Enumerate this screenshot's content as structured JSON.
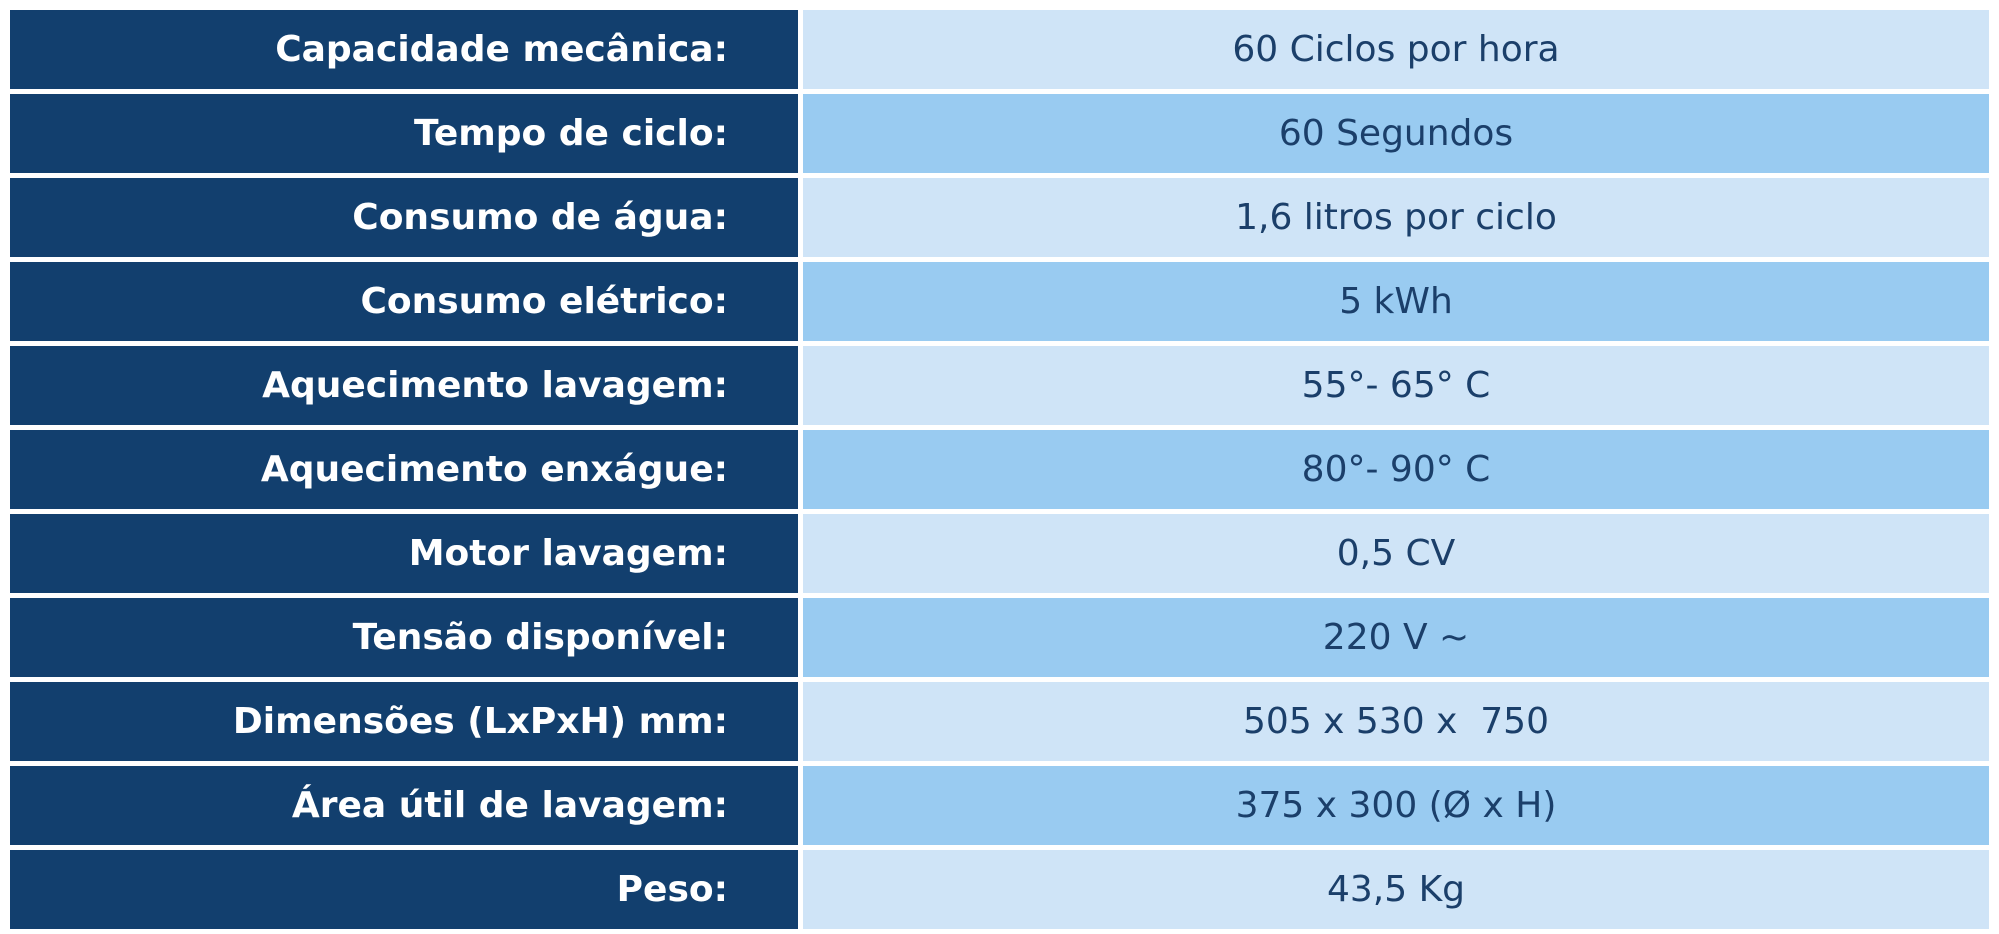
{
  "table": {
    "rows": [
      [
        "Capacidade mecânica:",
        "60 Ciclos por hora"
      ],
      [
        "Tempo de ciclo:",
        "60 Segundos"
      ],
      [
        "Consumo de água:",
        "1,6 litros por ciclo"
      ],
      [
        "Consumo elétrico:",
        "5 kWh"
      ],
      [
        "Aquecimento lavagem:",
        "55°- 65° C"
      ],
      [
        "Aquecimento enxágue:",
        "80°- 90° C"
      ],
      [
        "Motor lavagem:",
        "0,5 CV"
      ],
      [
        "Tensão disponível:",
        "220 V ~"
      ],
      [
        "Dimensões (LxPxH) mm:",
        "505 x 530 x  750"
      ],
      [
        "Área útil de lavagem:",
        "375 x 300 (Ø x H)"
      ],
      [
        "Peso:",
        "43,5 Kg"
      ]
    ]
  }
}
